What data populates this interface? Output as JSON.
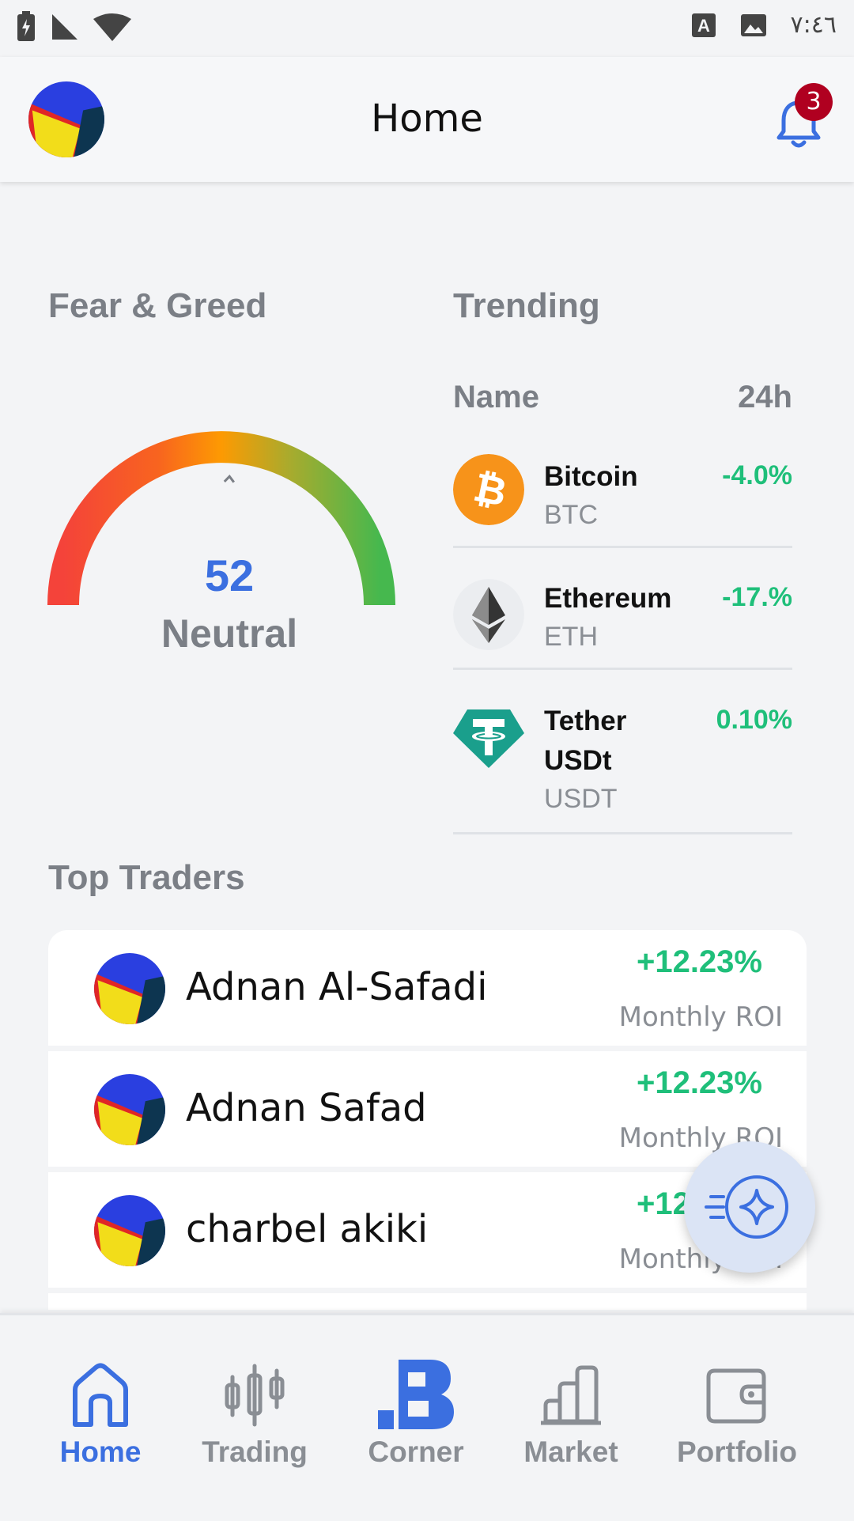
{
  "status_bar": {
    "time": "٧:٤٦"
  },
  "header": {
    "title": "Home",
    "notification_count": "3"
  },
  "fear_greed": {
    "title": "Fear & Greed",
    "value": "52",
    "label": "Neutral",
    "scale_min": "0",
    "scale_mid": "50",
    "scale_max": "100",
    "level": 52
  },
  "trending": {
    "title": "Trending",
    "col_name": "Name",
    "col_change": "24h",
    "coins": [
      {
        "name": "Bitcoin",
        "symbol": "BTC",
        "change": "-4.0%",
        "icon": "bitcoin-icon"
      },
      {
        "name": "Ethereum",
        "symbol": "ETH",
        "change": "-17.%",
        "icon": "ethereum-icon"
      },
      {
        "name": "Tether USDt",
        "symbol": "USDT",
        "change": "0.10%",
        "icon": "tether-icon"
      }
    ]
  },
  "top_traders": {
    "title": "Top Traders",
    "traders": [
      {
        "name": "Adnan Al-Safadi",
        "roi": "+12.23%",
        "roi_label": "Monthly ROI"
      },
      {
        "name": "Adnan Safad",
        "roi": "+12.23%",
        "roi_label": "Monthly ROI"
      },
      {
        "name": "charbel akiki",
        "roi": "+12.23%",
        "roi_label": "Monthly ROI"
      }
    ]
  },
  "colors": {
    "accent": "#3b6fe0",
    "positive": "#1fbf7a",
    "badge": "#b00020"
  },
  "bottom_nav": {
    "items": [
      {
        "label": "Home",
        "icon": "home-icon",
        "active": true
      },
      {
        "label": "Trading",
        "icon": "candlestick-icon",
        "active": false
      },
      {
        "label": "Corner",
        "icon": "corner-logo-icon",
        "active": false
      },
      {
        "label": "Market",
        "icon": "bar-chart-icon",
        "active": false
      },
      {
        "label": "Portfolio",
        "icon": "wallet-icon",
        "active": false
      }
    ]
  }
}
